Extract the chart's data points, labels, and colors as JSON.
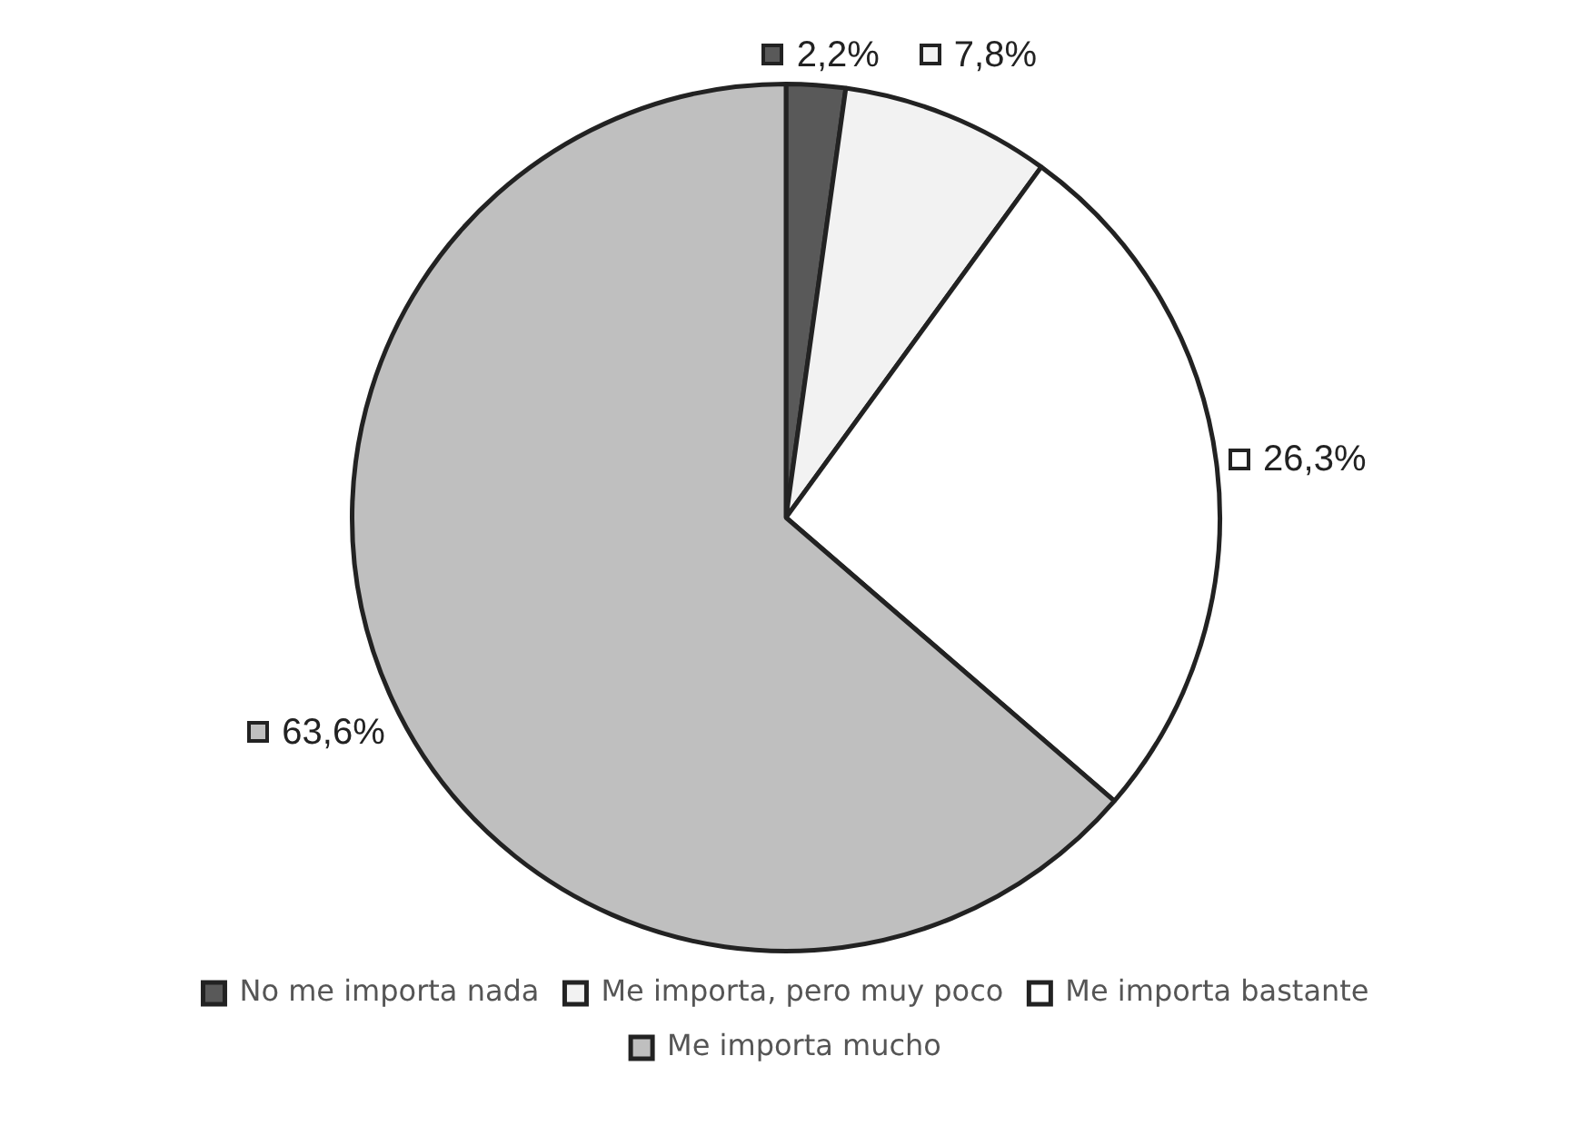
{
  "chart_data": {
    "type": "pie",
    "categories": [
      "No me importa nada",
      "Me importa, pero muy poco",
      "Me importa bastante",
      "Me importa mucho"
    ],
    "values": [
      2.2,
      7.8,
      26.3,
      63.6
    ],
    "colors": [
      "#595959",
      "#f2f2f2",
      "#ffffff",
      "#bfbfbf"
    ],
    "value_labels": [
      "2,2%",
      "7,8%",
      "26,3%",
      "63,6%"
    ],
    "legend": "bottom"
  }
}
